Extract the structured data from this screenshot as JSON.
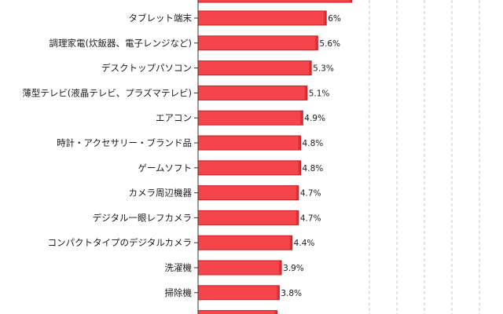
{
  "chart_data": {
    "type": "bar",
    "orientation": "horizontal",
    "title": "",
    "xlabel": "",
    "ylabel": "",
    "xlim": [
      0,
      14
    ],
    "grid": true,
    "bar_color": "#f5454a",
    "bar_edge_color": "#c41f26",
    "grid_color": "#c8c8c8",
    "partial_top": {
      "value": 7.2
    },
    "partial_bottom": {
      "value": 3.7
    },
    "categories": [
      "タブレット端末",
      "調理家電(炊飯器、電子レンジなど)",
      "デスクトップパソコン",
      "薄型テレビ(液晶テレビ、プラズマテレビ)",
      "エアコン",
      "時計・アクセサリー・ブランド品",
      "ゲームソフト",
      "カメラ周辺機器",
      "デジタル一眼レフカメラ",
      "コンパクトタイプのデジタルカメラ",
      "洗濯機",
      "掃除機"
    ],
    "values": [
      6,
      5.6,
      5.3,
      5.1,
      4.9,
      4.8,
      4.8,
      4.7,
      4.7,
      4.4,
      3.9,
      3.8
    ],
    "value_labels": [
      "6%",
      "5.6%",
      "5.3%",
      "5.1%",
      "4.9%",
      "4.8%",
      "4.8%",
      "4.7%",
      "4.7%",
      "4.4%",
      "3.9%",
      "3.8%"
    ]
  }
}
